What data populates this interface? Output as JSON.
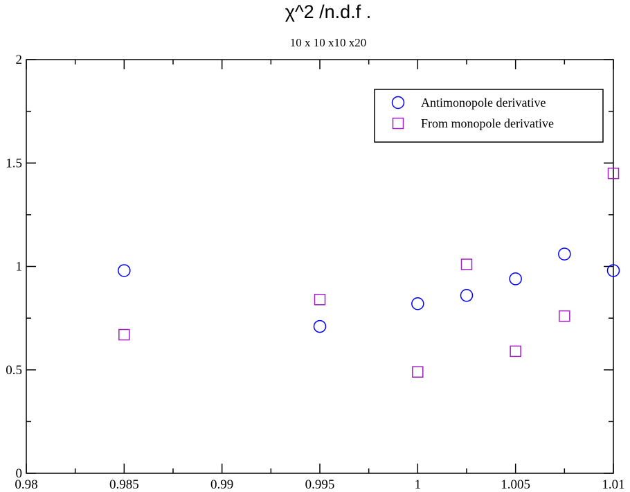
{
  "chart_data": {
    "type": "scatter",
    "title": "χ^2 /n.d.f .",
    "subtitle": "10 x 10 x10 x20",
    "xlabel": "",
    "ylabel": "",
    "xlim": [
      0.98,
      1.01
    ],
    "ylim": [
      0,
      2
    ],
    "x_ticks": [
      {
        "value": 0.98,
        "label": "0.98"
      },
      {
        "value": 0.985,
        "label": "0.985"
      },
      {
        "value": 0.99,
        "label": "0.99"
      },
      {
        "value": 0.995,
        "label": "0.995"
      },
      {
        "value": 1.0,
        "label": "1"
      },
      {
        "value": 1.005,
        "label": "1.005"
      },
      {
        "value": 1.01,
        "label": "1.01"
      }
    ],
    "y_ticks": [
      {
        "value": 0,
        "label": "0"
      },
      {
        "value": 0.5,
        "label": "0.5"
      },
      {
        "value": 1.0,
        "label": "1"
      },
      {
        "value": 1.5,
        "label": "1.5"
      },
      {
        "value": 2.0,
        "label": "2"
      }
    ],
    "legend_position": "top-right",
    "series": [
      {
        "name": "Antimonopole derivative",
        "marker": "circle",
        "color": "#0000ff",
        "points": [
          {
            "x": 0.985,
            "y": 0.98
          },
          {
            "x": 0.995,
            "y": 0.71
          },
          {
            "x": 1.0,
            "y": 0.82
          },
          {
            "x": 1.0025,
            "y": 0.86
          },
          {
            "x": 1.005,
            "y": 0.94
          },
          {
            "x": 1.0075,
            "y": 1.06
          },
          {
            "x": 1.01,
            "y": 0.98
          }
        ]
      },
      {
        "name": "From monopole derivative",
        "marker": "square",
        "color": "#a020c0",
        "points": [
          {
            "x": 0.985,
            "y": 0.67
          },
          {
            "x": 0.995,
            "y": 0.84
          },
          {
            "x": 1.0,
            "y": 0.49
          },
          {
            "x": 1.0025,
            "y": 1.01
          },
          {
            "x": 1.005,
            "y": 0.59
          },
          {
            "x": 1.0075,
            "y": 0.76
          },
          {
            "x": 1.01,
            "y": 1.45
          }
        ]
      }
    ]
  }
}
